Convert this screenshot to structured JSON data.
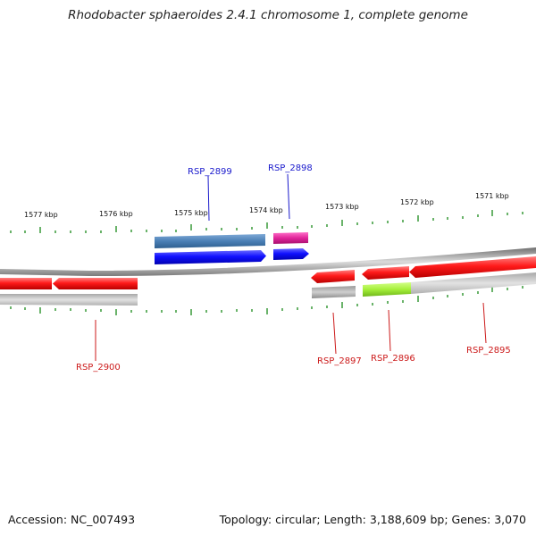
{
  "title": "Rhodobacter sphaeroides 2.4.1 chromosome 1, complete genome",
  "footer": {
    "accession": "Accession: NC_007493",
    "summary": "Topology: circular; Length: 3,188,609 bp; Genes: 3,070"
  },
  "colors": {
    "tick": "#1a8a1a",
    "backbone": "#8a8a8a",
    "forward_label": "#1a1acc",
    "reverse_label": "#cc1a1a"
  },
  "scale_labels": [
    "1577 kbp",
    "1576 kbp",
    "1575 kbp",
    "1574 kbp",
    "1573 kbp",
    "1572 kbp",
    "1571 kbp"
  ],
  "genes": [
    {
      "name": "RSP_2899",
      "strand": "forward",
      "color": "#1f1fff",
      "shadow_color": "#4a7fb5"
    },
    {
      "name": "RSP_2898",
      "strand": "forward",
      "color": "#1f1fff",
      "shadow_color": "#e0249a"
    },
    {
      "name": "RSP_2900",
      "strand": "reverse",
      "color": "#e81313",
      "shadow_color": "#bdbdbd"
    },
    {
      "name": "RSP_2897",
      "strand": "reverse",
      "color": "#e81313",
      "shadow_color": "#a3a3a3"
    },
    {
      "name": "RSP_2896",
      "strand": "reverse",
      "color": "#e81313",
      "shadow_color": "#a5f03a"
    },
    {
      "name": "RSP_2895",
      "strand": "reverse",
      "color": "#e81313",
      "shadow_color": "#bdbdbd"
    }
  ]
}
